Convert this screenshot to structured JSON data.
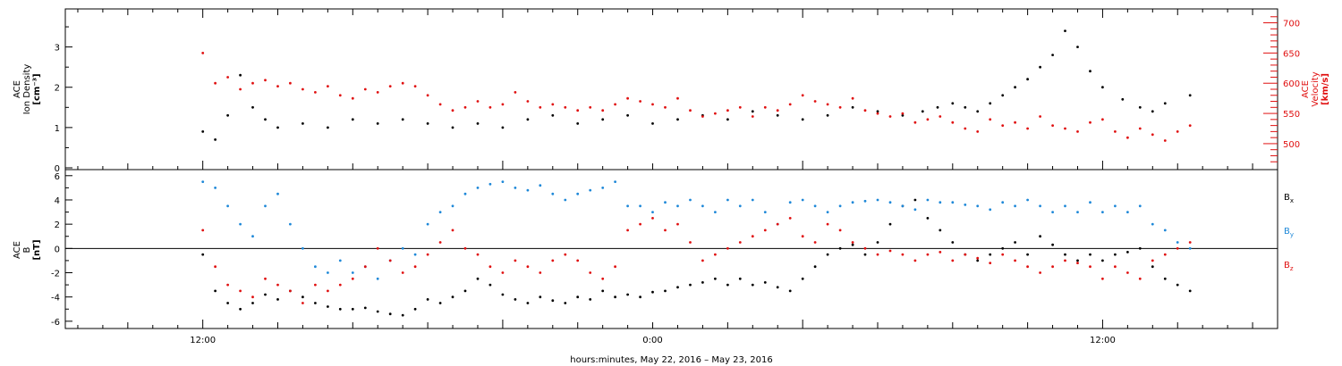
{
  "chart_data": [
    {
      "type": "scatter",
      "panel": "top",
      "ylabel_left": [
        "ACE",
        "Ion Density",
        "[cm⁻³]"
      ],
      "ylabel_right": [
        "ACE",
        "Velocity",
        "[km/s]"
      ],
      "left_axis": {
        "range": [
          0,
          3.9
        ],
        "ticks": [
          "0",
          "1",
          "2",
          "3"
        ],
        "color": "#000000"
      },
      "right_axis": {
        "range": [
          460,
          720
        ],
        "ticks": [
          "500",
          "550",
          "600",
          "650",
          "700"
        ],
        "color": "#e01010"
      },
      "series": [
        {
          "color": "#000000",
          "axis": "left",
          "x": [
            0.0,
            0.5,
            1.0,
            1.5,
            2.0,
            2.5,
            3.0,
            4.0,
            5.0,
            6.0,
            7.0,
            8.0,
            9.0,
            10.0,
            11.0,
            12.0,
            13.0,
            14.0,
            15.0,
            16.0,
            17.0,
            18.0,
            19.0,
            20.0,
            21.0,
            22.0,
            23.0,
            24.0,
            25.0,
            26.0,
            27.0,
            28.0,
            28.8,
            29.4,
            30.0,
            30.5,
            31.0,
            31.5,
            32.0,
            32.5,
            33.0,
            33.5,
            34.0,
            34.5,
            35.0,
            35.5,
            36.0,
            36.8,
            37.5,
            38.0,
            38.5,
            39.5
          ],
          "y": [
            0.9,
            0.7,
            1.3,
            2.3,
            1.5,
            1.2,
            1.0,
            1.1,
            1.0,
            1.2,
            1.1,
            1.2,
            1.1,
            1.0,
            1.1,
            1.0,
            1.2,
            1.3,
            1.1,
            1.2,
            1.3,
            1.1,
            1.2,
            1.3,
            1.2,
            1.4,
            1.3,
            1.2,
            1.3,
            1.5,
            1.4,
            1.3,
            1.4,
            1.5,
            1.6,
            1.5,
            1.4,
            1.6,
            1.8,
            2.0,
            2.2,
            2.5,
            2.8,
            3.4,
            3.0,
            2.4,
            2.0,
            1.7,
            1.5,
            1.4,
            1.6,
            1.8
          ]
        },
        {
          "color": "#e01010",
          "axis": "right",
          "x": [
            0.0,
            0.5,
            1.0,
            1.5,
            2.0,
            2.5,
            3.0,
            3.5,
            4.0,
            4.5,
            5.0,
            5.5,
            6.0,
            6.5,
            7.0,
            7.5,
            8.0,
            8.5,
            9.0,
            9.5,
            10.0,
            10.5,
            11.0,
            11.5,
            12.0,
            12.5,
            13.0,
            13.5,
            14.0,
            14.5,
            15.0,
            15.5,
            16.0,
            16.5,
            17.0,
            17.5,
            18.0,
            18.5,
            19.0,
            19.5,
            20.0,
            20.5,
            21.0,
            21.5,
            22.0,
            22.5,
            23.0,
            23.5,
            24.0,
            24.5,
            25.0,
            25.5,
            26.0,
            26.5,
            27.0,
            27.5,
            28.0,
            28.5,
            29.0,
            29.5,
            30.0,
            30.5,
            31.0,
            31.5,
            32.0,
            32.5,
            33.0,
            33.5,
            34.0,
            34.5,
            35.0,
            35.5,
            36.0,
            36.5,
            37.0,
            37.5,
            38.0,
            38.5,
            39.0,
            39.5
          ],
          "y": [
            650,
            600,
            610,
            590,
            600,
            605,
            595,
            600,
            590,
            585,
            595,
            580,
            575,
            590,
            585,
            595,
            600,
            595,
            580,
            565,
            555,
            560,
            570,
            560,
            565,
            585,
            570,
            560,
            565,
            560,
            555,
            560,
            555,
            565,
            575,
            570,
            565,
            560,
            575,
            555,
            545,
            550,
            555,
            560,
            545,
            560,
            555,
            565,
            580,
            570,
            565,
            560,
            575,
            555,
            550,
            545,
            550,
            535,
            540,
            545,
            535,
            525,
            520,
            540,
            530,
            535,
            525,
            545,
            530,
            525,
            520,
            535,
            540,
            520,
            510,
            525,
            515,
            505,
            520,
            530
          ]
        }
      ]
    },
    {
      "type": "scatter",
      "panel": "bottom",
      "ylabel_left": [
        "ACE",
        "B",
        "[nT]"
      ],
      "left_axis": {
        "range": [
          -6.6,
          6.5
        ],
        "ticks": [
          "6",
          "4",
          "2",
          "0",
          "-2",
          "-4",
          "-6"
        ]
      },
      "zero_line": true,
      "series": [
        {
          "name": "Bx",
          "color": "#000000",
          "x": [
            0.0,
            0.5,
            1.0,
            1.5,
            2.0,
            2.5,
            3.0,
            3.5,
            4.0,
            4.5,
            5.0,
            5.5,
            6.0,
            6.5,
            7.0,
            7.5,
            8.0,
            8.5,
            9.0,
            9.5,
            10.0,
            10.5,
            11.0,
            11.5,
            12.0,
            12.5,
            13.0,
            13.5,
            14.0,
            14.5,
            15.0,
            15.5,
            16.0,
            16.5,
            17.0,
            17.5,
            18.0,
            18.5,
            19.0,
            19.5,
            20.0,
            20.5,
            21.0,
            21.5,
            22.0,
            22.5,
            23.0,
            23.5,
            24.0,
            24.5,
            25.0,
            25.5,
            26.0,
            26.5,
            27.0,
            27.5,
            28.0,
            28.5,
            29.0,
            29.5,
            30.0,
            30.5,
            31.0,
            31.5,
            32.0,
            32.5,
            33.0,
            33.5,
            34.0,
            34.5,
            35.0,
            35.5,
            36.0,
            36.5,
            37.0,
            37.5,
            38.0,
            38.5,
            39.0,
            39.5
          ],
          "y": [
            -0.5,
            -3.5,
            -4.5,
            -5.0,
            -4.5,
            -3.8,
            -4.2,
            -3.5,
            -4.0,
            -4.5,
            -4.8,
            -5.0,
            -5.0,
            -4.9,
            -5.2,
            -5.4,
            -5.5,
            -5.0,
            -4.2,
            -4.5,
            -4.0,
            -3.5,
            -2.5,
            -3.0,
            -3.8,
            -4.2,
            -4.5,
            -4.0,
            -4.3,
            -4.5,
            -4.0,
            -4.2,
            -3.5,
            -4.0,
            -3.8,
            -4.0,
            -3.6,
            -3.5,
            -3.2,
            -3.0,
            -2.8,
            -2.5,
            -3.0,
            -2.5,
            -3.0,
            -2.8,
            -3.2,
            -3.5,
            -2.5,
            -1.5,
            -0.5,
            0.0,
            0.3,
            -0.5,
            0.5,
            2.0,
            3.5,
            4.0,
            2.5,
            1.5,
            0.5,
            -0.5,
            -1.0,
            -0.5,
            0.0,
            0.5,
            -0.5,
            1.0,
            0.3,
            -0.5,
            -1.0,
            -0.5,
            -1.0,
            -0.5,
            -0.3,
            0.0,
            -1.5,
            -2.5,
            -3.0,
            -3.5
          ]
        },
        {
          "name": "By",
          "color": "#1e88d8",
          "x": [
            0.0,
            0.5,
            1.0,
            1.5,
            2.0,
            2.5,
            3.0,
            3.5,
            4.0,
            4.5,
            5.0,
            5.5,
            6.0,
            6.5,
            7.0,
            7.5,
            8.0,
            8.5,
            9.0,
            9.5,
            10.0,
            10.5,
            11.0,
            11.5,
            12.0,
            12.5,
            13.0,
            13.5,
            14.0,
            14.5,
            15.0,
            15.5,
            16.0,
            16.5,
            17.0,
            17.5,
            18.0,
            18.5,
            19.0,
            19.5,
            20.0,
            20.5,
            21.0,
            21.5,
            22.0,
            22.5,
            23.0,
            23.5,
            24.0,
            24.5,
            25.0,
            25.5,
            26.0,
            26.5,
            27.0,
            27.5,
            28.0,
            28.5,
            29.0,
            29.5,
            30.0,
            30.5,
            31.0,
            31.5,
            32.0,
            32.5,
            33.0,
            33.5,
            34.0,
            34.5,
            35.0,
            35.5,
            36.0,
            36.5,
            37.0,
            37.5,
            38.0,
            38.5,
            39.0,
            39.5
          ],
          "y": [
            5.5,
            5.0,
            3.5,
            2.0,
            1.0,
            3.5,
            4.5,
            2.0,
            0.0,
            -1.5,
            -2.0,
            -1.0,
            -2.0,
            -1.5,
            -2.5,
            -1.0,
            0.0,
            -0.5,
            2.0,
            3.0,
            3.5,
            4.5,
            5.0,
            5.3,
            5.5,
            5.0,
            4.8,
            5.2,
            4.5,
            4.0,
            4.5,
            4.8,
            5.0,
            5.5,
            3.5,
            3.5,
            3.0,
            3.8,
            3.5,
            4.0,
            3.5,
            3.0,
            4.0,
            3.5,
            4.0,
            3.0,
            2.0,
            3.8,
            4.0,
            3.5,
            3.0,
            3.5,
            3.8,
            3.9,
            4.0,
            3.8,
            3.5,
            3.2,
            4.0,
            3.8,
            3.8,
            3.6,
            3.5,
            3.2,
            3.8,
            3.5,
            4.0,
            3.5,
            3.0,
            3.5,
            3.0,
            3.8,
            3.0,
            3.5,
            3.0,
            3.5,
            2.0,
            1.5,
            0.5,
            0.0
          ]
        },
        {
          "name": "Bz",
          "color": "#e01010",
          "x": [
            0.0,
            0.5,
            1.0,
            1.5,
            2.0,
            2.5,
            3.0,
            3.5,
            4.0,
            4.5,
            5.0,
            5.5,
            6.0,
            6.5,
            7.0,
            7.5,
            8.0,
            8.5,
            9.0,
            9.5,
            10.0,
            10.5,
            11.0,
            11.5,
            12.0,
            12.5,
            13.0,
            13.5,
            14.0,
            14.5,
            15.0,
            15.5,
            16.0,
            16.5,
            17.0,
            17.5,
            18.0,
            18.5,
            19.0,
            19.5,
            20.0,
            20.5,
            21.0,
            21.5,
            22.0,
            22.5,
            23.0,
            23.5,
            24.0,
            24.5,
            25.0,
            25.5,
            26.0,
            26.5,
            27.0,
            27.5,
            28.0,
            28.5,
            29.0,
            29.5,
            30.0,
            30.5,
            31.0,
            31.5,
            32.0,
            32.5,
            33.0,
            33.5,
            34.0,
            34.5,
            35.0,
            35.5,
            36.0,
            36.5,
            37.0,
            37.5,
            38.0,
            38.5,
            39.0,
            39.5
          ],
          "y": [
            1.5,
            -1.5,
            -3.0,
            -3.5,
            -4.0,
            -2.5,
            -3.0,
            -3.5,
            -4.5,
            -3.0,
            -3.5,
            -3.0,
            -2.5,
            -1.5,
            0.0,
            -1.0,
            -2.0,
            -1.5,
            -0.5,
            0.5,
            1.5,
            0.0,
            -0.5,
            -1.5,
            -2.0,
            -1.0,
            -1.5,
            -2.0,
            -1.0,
            -0.5,
            -1.0,
            -2.0,
            -2.5,
            -1.5,
            1.5,
            2.0,
            2.5,
            1.5,
            2.0,
            0.5,
            -1.0,
            -0.5,
            0.0,
            0.5,
            1.0,
            1.5,
            2.0,
            2.5,
            1.0,
            0.5,
            2.0,
            1.5,
            0.5,
            0.0,
            -0.5,
            -0.2,
            -0.5,
            -1.0,
            -0.5,
            -0.3,
            -1.0,
            -0.5,
            -0.8,
            -1.2,
            -0.5,
            -1.0,
            -1.5,
            -2.0,
            -1.5,
            -1.0,
            -1.2,
            -1.5,
            -2.5,
            -1.5,
            -2.0,
            -2.5,
            -1.0,
            -0.5,
            0.0,
            0.5
          ]
        }
      ]
    }
  ],
  "x_axis": {
    "range": [
      -5.5,
      43.0
    ],
    "tick_labels": [
      {
        "x": 0,
        "label": "12:00"
      },
      {
        "x": 18,
        "label": "0:00"
      },
      {
        "x": 36,
        "label": "12:00"
      }
    ],
    "label": "hours:minutes, May 22, 2016 – May 23, 2016"
  },
  "legend": [
    {
      "base": "B",
      "sub": "x",
      "color": "#000000"
    },
    {
      "base": "B",
      "sub": "y",
      "color": "#1e88d8"
    },
    {
      "base": "B",
      "sub": "z",
      "color": "#e01010"
    }
  ]
}
